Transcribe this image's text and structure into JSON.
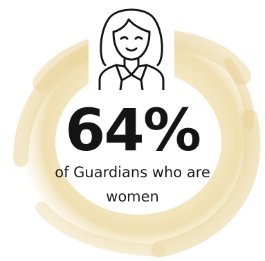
{
  "stat": {
    "value": "64%",
    "caption": "of Guardians who are women"
  },
  "icon": "woman-avatar-icon",
  "colors": {
    "brush": "#ecd9a3",
    "text": "#141414",
    "background": "#ffffff"
  }
}
